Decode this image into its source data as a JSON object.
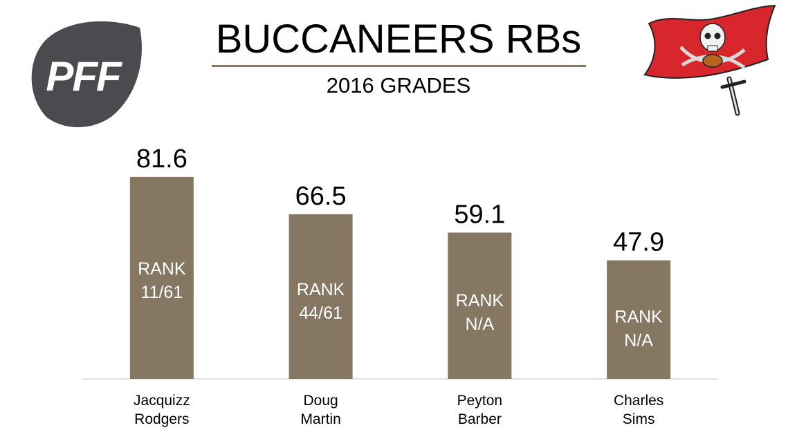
{
  "header": {
    "title": "BUCCANEERS RBs",
    "subtitle": "2016 GRADES",
    "brand_logo_text": "PFF"
  },
  "colors": {
    "bar": "#857761",
    "rule": "#857761",
    "axis": "#d9d9d9",
    "logo_dark": "#4a4a4f",
    "flag_red": "#d7262c"
  },
  "chart_data": {
    "type": "bar",
    "title": "BUCCANEERS RBs",
    "subtitle": "2016 GRADES",
    "xlabel": "",
    "ylabel": "",
    "ylim": [
      0,
      100
    ],
    "grid": false,
    "categories": [
      [
        "Jacquizz",
        "Rodgers"
      ],
      [
        "Doug",
        "Martin"
      ],
      [
        "Peyton",
        "Barber"
      ],
      [
        "Charles",
        "Sims"
      ]
    ],
    "values": [
      81.6,
      66.5,
      59.1,
      47.9
    ],
    "data_labels": [
      "81.6",
      "66.5",
      "59.1",
      "47.9"
    ],
    "rank_labels": [
      [
        "RANK",
        "11/61"
      ],
      [
        "RANK",
        "44/61"
      ],
      [
        "RANK",
        "N/A"
      ],
      [
        "RANK",
        "N/A"
      ]
    ]
  }
}
